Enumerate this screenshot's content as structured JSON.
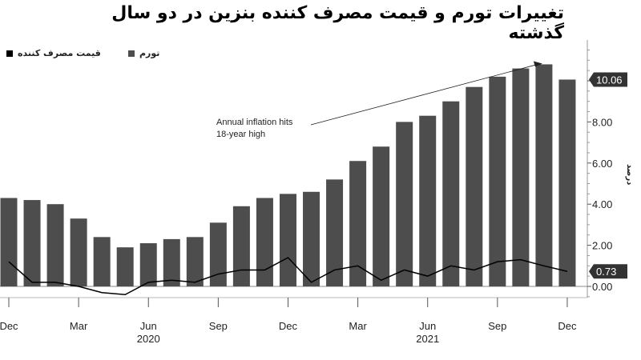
{
  "chart_data": {
    "type": "bar",
    "title": "تغییرات تورم و قیمت مصرف کننده بنزین در دو سال گذشته",
    "ylabel": "درصد",
    "ylim": [
      -1,
      12
    ],
    "yticks": [
      0,
      2,
      4,
      6,
      8,
      10
    ],
    "ytick_labels": [
      "0.00",
      "2.00",
      "4.00",
      "6.00",
      "8.00",
      "10.00"
    ],
    "x_tick_labels": [
      "Dec",
      "Mar",
      "Jun",
      "Sep",
      "Dec",
      "Mar",
      "Jun",
      "Sep",
      "Dec"
    ],
    "x_tick_index": [
      0,
      3,
      6,
      9,
      12,
      15,
      18,
      21,
      24
    ],
    "year_labels": [
      {
        "label": "2020",
        "index": 6
      },
      {
        "label": "2021",
        "index": 18
      }
    ],
    "series": [
      {
        "name": "تورم",
        "kind": "bar",
        "color": "#4d4d4d",
        "values": [
          4.3,
          4.2,
          4.0,
          3.3,
          2.4,
          1.9,
          2.1,
          2.3,
          2.4,
          3.1,
          3.9,
          4.3,
          4.5,
          4.6,
          5.2,
          6.1,
          6.8,
          8.0,
          8.3,
          9.0,
          9.7,
          10.2,
          10.6,
          10.8,
          10.06
        ]
      },
      {
        "name": "قیمت مصرف کننده",
        "kind": "line",
        "color": "#000000",
        "values": [
          1.2,
          0.2,
          0.2,
          0.0,
          -0.3,
          -0.4,
          0.2,
          0.3,
          0.2,
          0.6,
          0.8,
          0.8,
          1.4,
          0.2,
          0.8,
          1.0,
          0.3,
          0.8,
          0.5,
          1.0,
          0.8,
          1.2,
          1.3,
          1.0,
          0.73
        ]
      }
    ],
    "last_value_labels": [
      {
        "series": "تورم",
        "label": "10.06"
      },
      {
        "series": "قیمت مصرف کننده",
        "label": "0.73"
      }
    ],
    "annotation": {
      "lines": [
        "Annual inflation hits",
        "18-year high"
      ],
      "target_index": 23
    }
  }
}
